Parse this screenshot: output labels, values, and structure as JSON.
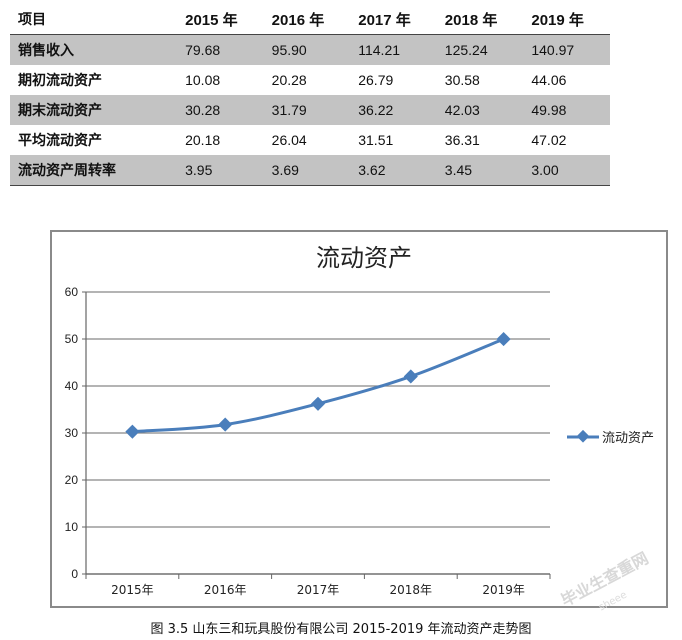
{
  "table": {
    "header": [
      "项目",
      "2015 年",
      "2016 年",
      "2017 年",
      "2018 年",
      "2019 年"
    ],
    "rows": [
      {
        "label": "销售收入",
        "values": [
          "79.68",
          "95.90",
          "114.21",
          "125.24",
          "140.97"
        ],
        "shaded": true
      },
      {
        "label": "期初流动资产",
        "values": [
          "10.08",
          "20.28",
          "26.79",
          "30.58",
          "44.06"
        ],
        "shaded": false
      },
      {
        "label": "期末流动资产",
        "values": [
          "30.28",
          "31.79",
          "36.22",
          "42.03",
          "49.98"
        ],
        "shaded": true
      },
      {
        "label": "平均流动资产",
        "values": [
          "20.18",
          "26.04",
          "31.51",
          "36.31",
          "47.02"
        ],
        "shaded": false
      },
      {
        "label": "流动资产周转率",
        "values": [
          "3.95",
          "3.69",
          "3.62",
          "3.45",
          "3.00"
        ],
        "shaded": true
      }
    ]
  },
  "chart_data": {
    "type": "line",
    "title": "流动资产",
    "categories": [
      "2015年",
      "2016年",
      "2017年",
      "2018年",
      "2019年"
    ],
    "series": [
      {
        "name": "流动资产",
        "values": [
          30.28,
          31.79,
          36.22,
          42.03,
          49.98
        ],
        "color": "#4a7ebb",
        "marker": "diamond"
      }
    ],
    "ylim": [
      0,
      60
    ],
    "yticks": [
      0,
      10,
      20,
      30,
      40,
      50,
      60
    ],
    "grid": true,
    "legend_position": "right",
    "xlabel": "",
    "ylabel": ""
  },
  "caption": "图 3.5 山东三和玩具股份有限公司 2015-2019 年流动资产走势图",
  "watermark": {
    "text": "毕业生查重网",
    "sub": "sheee"
  }
}
